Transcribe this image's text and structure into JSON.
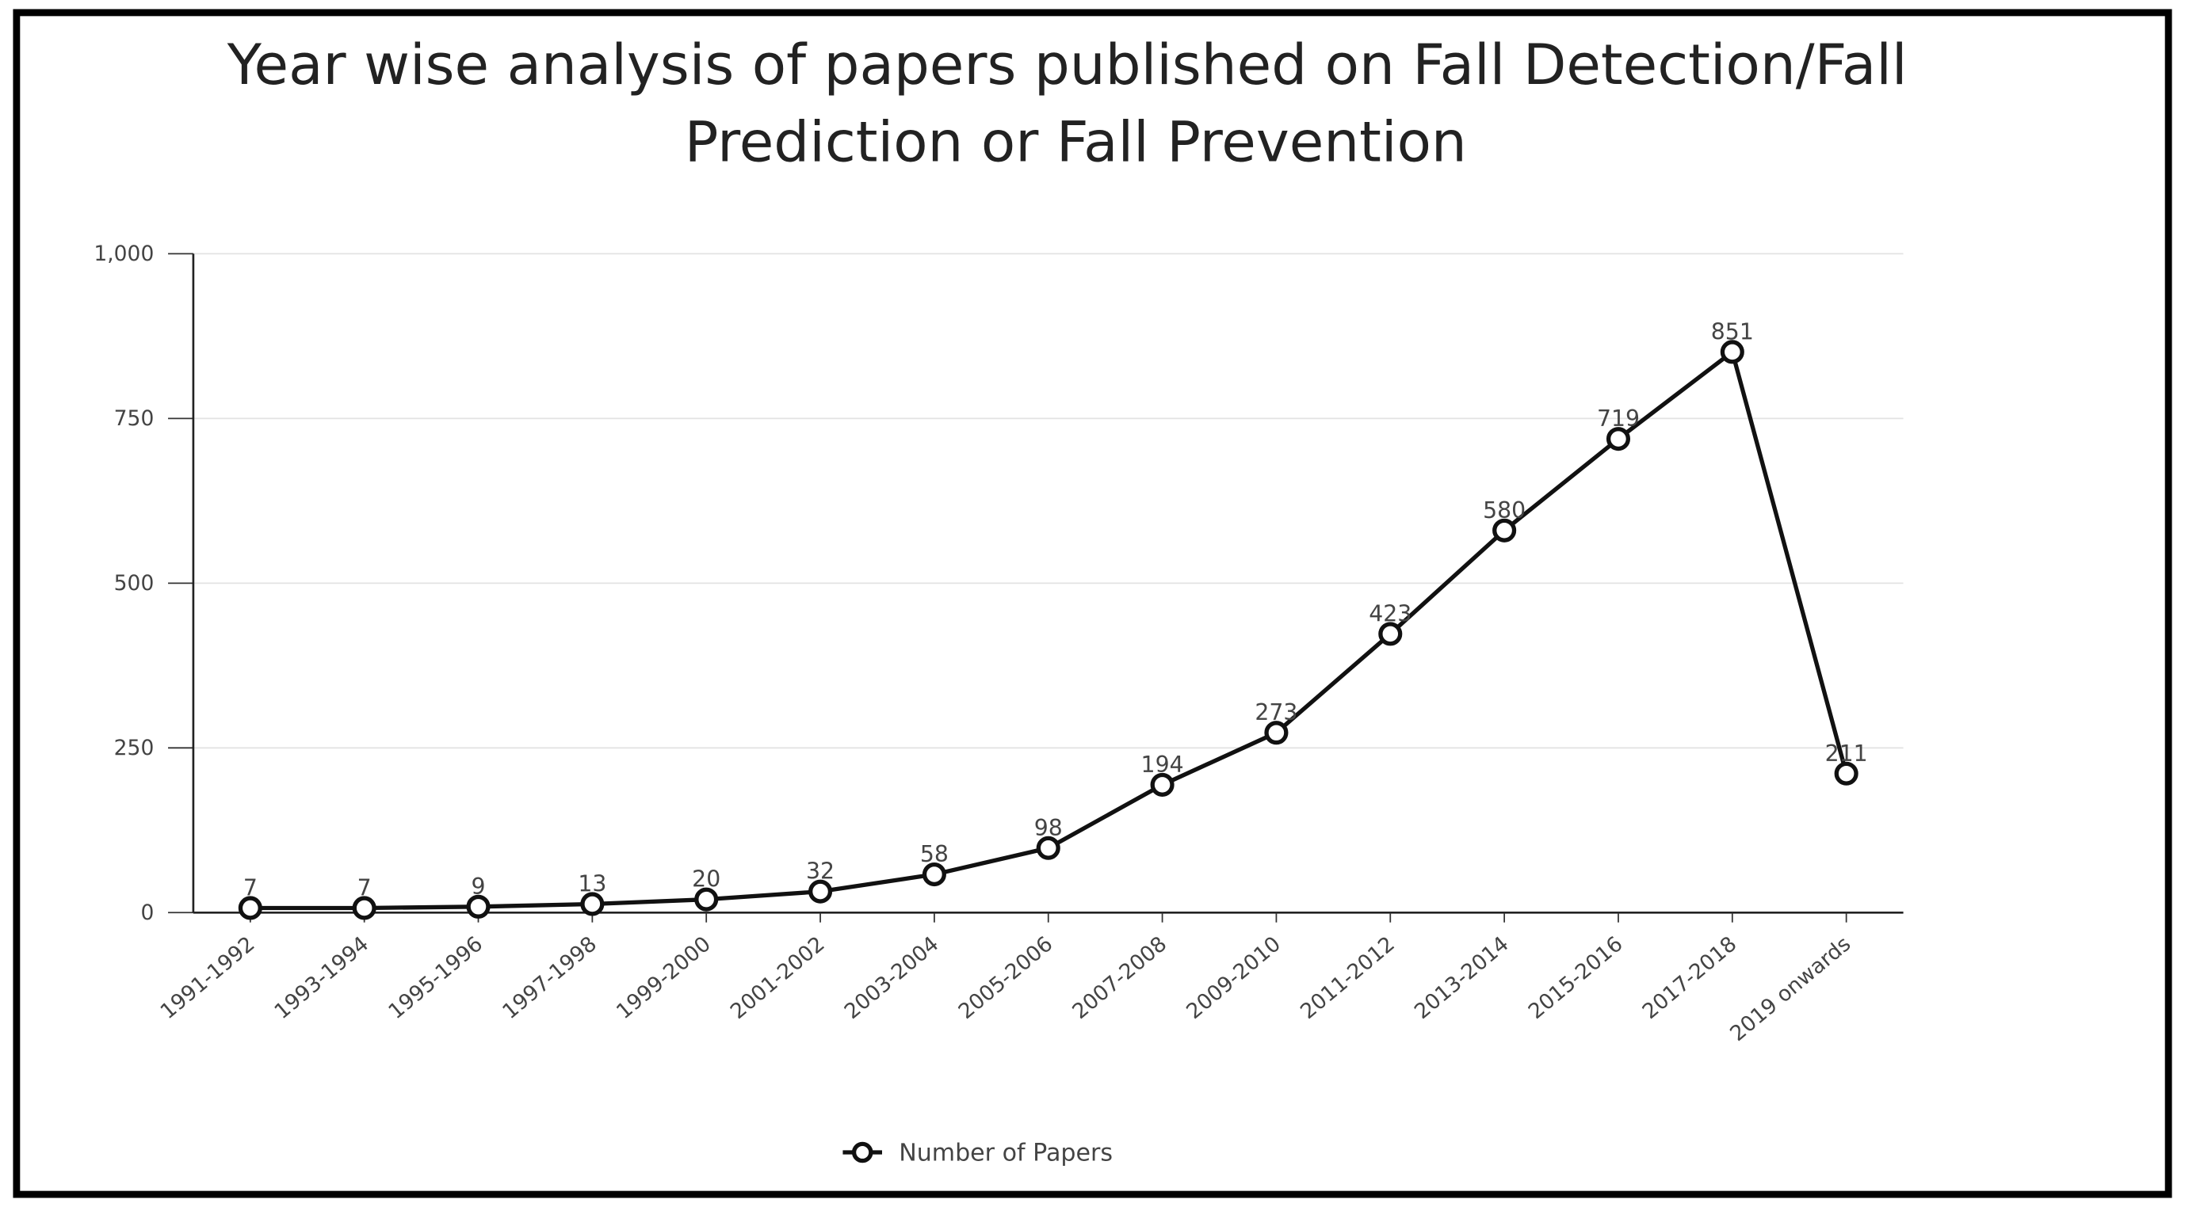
{
  "chart_data": {
    "type": "line",
    "title": [
      "Year wise analysis of papers published on Fall Detection/Fall",
      "Prediction or Fall Prevention"
    ],
    "categories": [
      "1991-1992",
      "1993-1994",
      "1995-1996",
      "1997-1998",
      "1999-2000",
      "2001-2002",
      "2003-2004",
      "2005-2006",
      "2007-2008",
      "2009-2010",
      "2011-2012",
      "2013-2014",
      "2015-2016",
      "2017-2018",
      "2019 onwards"
    ],
    "series": [
      {
        "name": "Number of Papers",
        "color": "#111111",
        "values": [
          7,
          7,
          9,
          13,
          20,
          32,
          58,
          98,
          194,
          273,
          423,
          580,
          719,
          851,
          211
        ]
      }
    ],
    "ylim": [
      0,
      1000
    ],
    "yticks": [
      0,
      250,
      500,
      750,
      {
        "value": 1000,
        "label": "1,000"
      }
    ],
    "grid": true
  }
}
